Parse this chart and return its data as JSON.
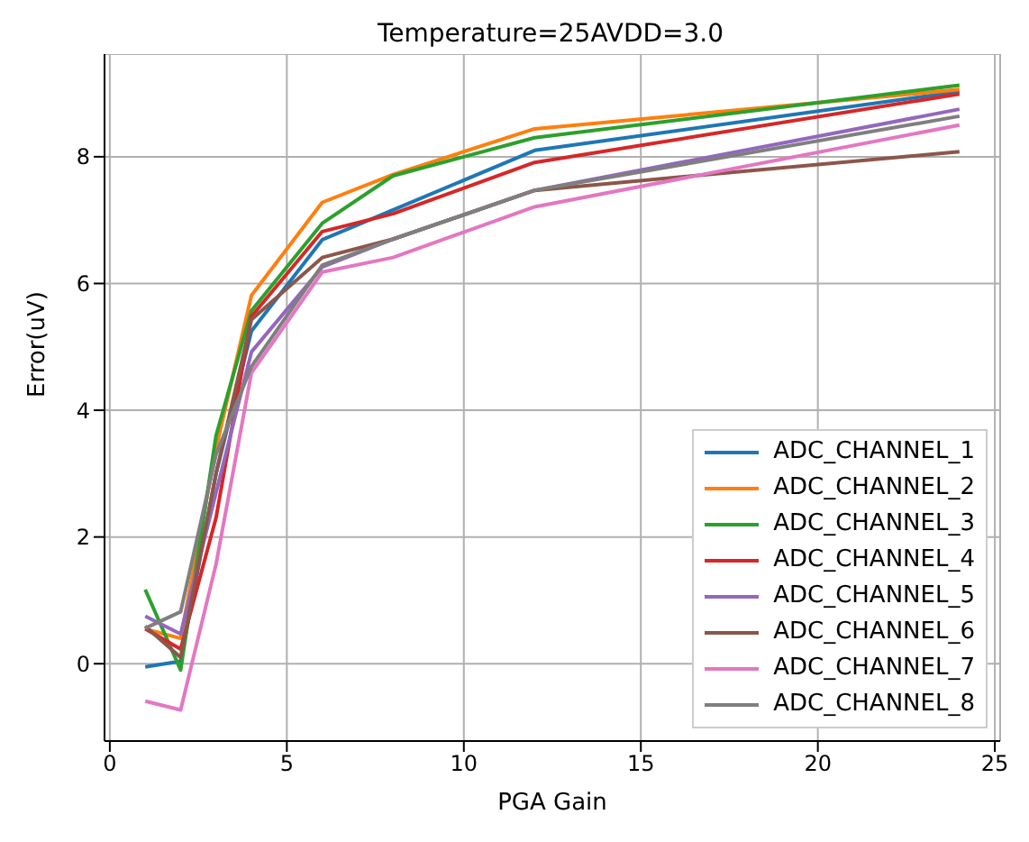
{
  "chart_data": {
    "type": "line",
    "title": "Temperature=25AVDD=3.0",
    "xlabel": "PGA Gain",
    "ylabel": "Error(uV)",
    "x": [
      1,
      2,
      3,
      4,
      6,
      8,
      12,
      24
    ],
    "series": [
      {
        "name": "ADC_CHANNEL_1",
        "color": "#1f77b4",
        "values": [
          -0.05,
          0.04,
          3.0,
          5.25,
          6.69,
          7.16,
          8.1,
          9.03
        ]
      },
      {
        "name": "ADC_CHANNEL_2",
        "color": "#ff7f0e",
        "values": [
          0.55,
          0.4,
          3.4,
          5.81,
          7.28,
          7.72,
          8.44,
          9.06
        ]
      },
      {
        "name": "ADC_CHANNEL_3",
        "color": "#2ca02c",
        "values": [
          1.17,
          -0.1,
          3.6,
          5.57,
          6.95,
          7.7,
          8.3,
          9.13
        ]
      },
      {
        "name": "ADC_CHANNEL_4",
        "color": "#d62728",
        "values": [
          0.55,
          0.23,
          2.3,
          5.48,
          6.82,
          7.1,
          7.91,
          8.99
        ]
      },
      {
        "name": "ADC_CHANNEL_5",
        "color": "#9467bd",
        "values": [
          0.75,
          0.47,
          2.7,
          4.92,
          6.26,
          6.7,
          7.47,
          8.75
        ]
      },
      {
        "name": "ADC_CHANNEL_6",
        "color": "#8c564b",
        "values": [
          0.59,
          0.1,
          3.0,
          5.43,
          6.41,
          6.7,
          7.47,
          8.08
        ]
      },
      {
        "name": "ADC_CHANNEL_7",
        "color": "#e377c2",
        "values": [
          -0.59,
          -0.73,
          1.57,
          4.59,
          6.18,
          6.41,
          7.21,
          8.5
        ]
      },
      {
        "name": "ADC_CHANNEL_8",
        "color": "#7f7f7f",
        "values": [
          0.56,
          0.82,
          3.3,
          4.69,
          6.29,
          6.7,
          7.47,
          8.64
        ]
      }
    ],
    "xlim": [
      -0.15,
      25.15
    ],
    "xticks": [
      0,
      5,
      10,
      15,
      20,
      25
    ],
    "ylim": [
      -1.22,
      9.62
    ],
    "yticks": [
      0,
      2,
      4,
      6,
      8
    ],
    "grid": true,
    "legend": "bottom right",
    "marker": "none",
    "line_style": "solid"
  }
}
